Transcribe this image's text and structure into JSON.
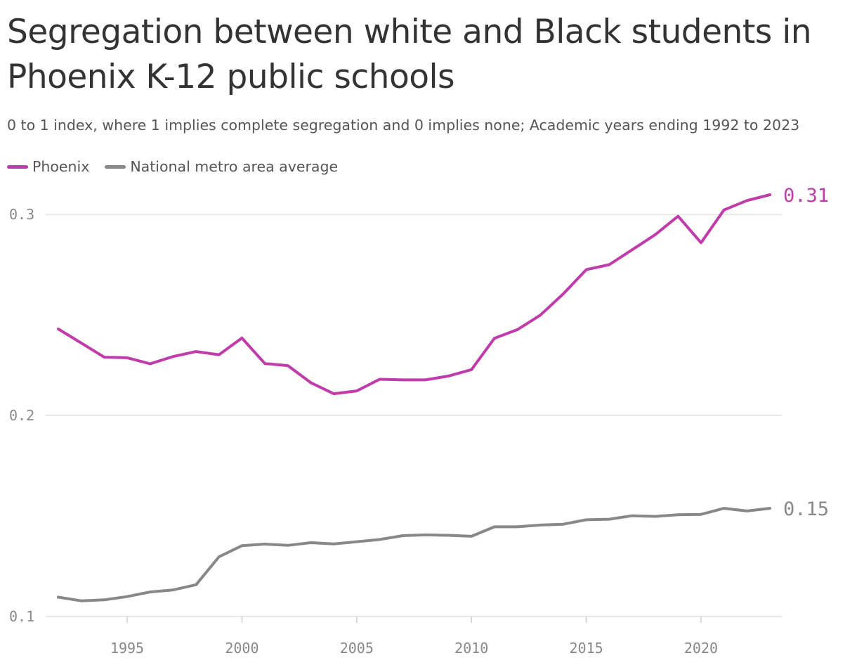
{
  "chart_data": {
    "type": "line",
    "title": "Segregation between white and Black students in Phoenix K-12 public schools",
    "subtitle": "0 to 1 index, where 1 implies complete segregation and 0 implies none; Academic years ending 1992 to 2023",
    "xlabel": "",
    "ylabel": "",
    "x": [
      1992,
      1993,
      1994,
      1995,
      1996,
      1997,
      1998,
      1999,
      2000,
      2001,
      2002,
      2003,
      2004,
      2005,
      2006,
      2007,
      2008,
      2009,
      2010,
      2011,
      2012,
      2013,
      2014,
      2015,
      2016,
      2017,
      2018,
      2019,
      2020,
      2021,
      2022,
      2023
    ],
    "xticks": [
      1995,
      2000,
      2005,
      2010,
      2015,
      2020
    ],
    "xtick_labels": [
      "1995",
      "2000",
      "2005",
      "2010",
      "2015",
      "2020"
    ],
    "yticks": [
      0.1,
      0.2,
      0.3
    ],
    "ytick_labels": [
      "0.1",
      "0.2",
      "0.3"
    ],
    "xlim": [
      1992,
      2023
    ],
    "ylim": [
      0.1,
      0.31
    ],
    "series": [
      {
        "name": "Phoenix",
        "color": "#c13bab",
        "end_label": "0.31",
        "values": [
          0.243,
          0.236,
          0.229,
          0.2287,
          0.2257,
          0.2293,
          0.2318,
          0.2302,
          0.2385,
          0.2258,
          0.2248,
          0.2163,
          0.2108,
          0.2122,
          0.218,
          0.2177,
          0.2177,
          0.2196,
          0.2228,
          0.2384,
          0.2427,
          0.2499,
          0.2605,
          0.2725,
          0.275,
          0.2824,
          0.2899,
          0.2991,
          0.2859,
          0.3022,
          0.3069,
          0.3098
        ]
      },
      {
        "name": "National metro area average",
        "color": "#888888",
        "end_label": "0.15",
        "values": [
          0.1096,
          0.1078,
          0.1083,
          0.1099,
          0.1122,
          0.1132,
          0.1158,
          0.1297,
          0.1352,
          0.136,
          0.1354,
          0.1367,
          0.1361,
          0.1372,
          0.1383,
          0.1402,
          0.1406,
          0.1404,
          0.1399,
          0.1446,
          0.1446,
          0.1455,
          0.1459,
          0.1481,
          0.1484,
          0.1501,
          0.1498,
          0.1506,
          0.1508,
          0.1538,
          0.1525,
          0.1538
        ]
      }
    ]
  }
}
